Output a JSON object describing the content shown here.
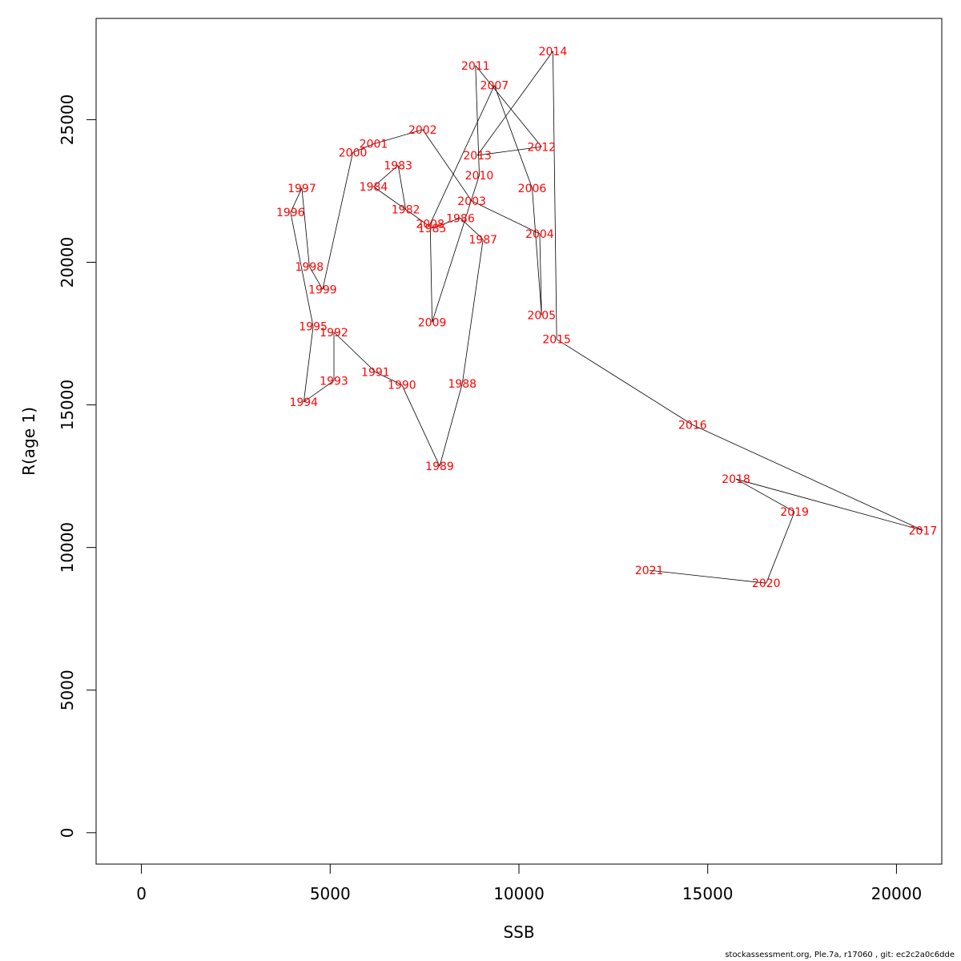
{
  "chart_data": {
    "type": "line",
    "xlabel": "SSB",
    "ylabel": "R(age 1)",
    "xlim": [
      -1200,
      21200
    ],
    "ylim": [
      -1100,
      28550
    ],
    "xticks": [
      0,
      5000,
      10000,
      15000,
      20000
    ],
    "yticks": [
      0,
      5000,
      10000,
      15000,
      20000,
      25000
    ],
    "line_color": "#000000",
    "label_color": "#ff0000",
    "points": [
      {
        "year": "1982",
        "x": 7000,
        "y": 21850
      },
      {
        "year": "1983",
        "x": 6800,
        "y": 23400
      },
      {
        "year": "1984",
        "x": 6150,
        "y": 22650
      },
      {
        "year": "1985",
        "x": 7700,
        "y": 21200
      },
      {
        "year": "1986",
        "x": 8450,
        "y": 21550
      },
      {
        "year": "1987",
        "x": 9050,
        "y": 20800
      },
      {
        "year": "1988",
        "x": 8500,
        "y": 15750
      },
      {
        "year": "1989",
        "x": 7900,
        "y": 12850
      },
      {
        "year": "1990",
        "x": 6900,
        "y": 15700
      },
      {
        "year": "1991",
        "x": 6200,
        "y": 16150
      },
      {
        "year": "1992",
        "x": 5100,
        "y": 17550
      },
      {
        "year": "1993",
        "x": 5100,
        "y": 15850
      },
      {
        "year": "1994",
        "x": 4300,
        "y": 15100
      },
      {
        "year": "1995",
        "x": 4550,
        "y": 17750
      },
      {
        "year": "1996",
        "x": 3950,
        "y": 21750
      },
      {
        "year": "1997",
        "x": 4250,
        "y": 22600
      },
      {
        "year": "1998",
        "x": 4450,
        "y": 19850
      },
      {
        "year": "1999",
        "x": 4800,
        "y": 19050
      },
      {
        "year": "2000",
        "x": 5600,
        "y": 23850
      },
      {
        "year": "2001",
        "x": 6150,
        "y": 24150
      },
      {
        "year": "2002",
        "x": 7450,
        "y": 24650
      },
      {
        "year": "2003",
        "x": 8750,
        "y": 22150
      },
      {
        "year": "2004",
        "x": 10550,
        "y": 21000
      },
      {
        "year": "2005",
        "x": 10600,
        "y": 18150
      },
      {
        "year": "2006",
        "x": 10350,
        "y": 22600
      },
      {
        "year": "2007",
        "x": 9350,
        "y": 26200
      },
      {
        "year": "2008",
        "x": 7650,
        "y": 21350
      },
      {
        "year": "2009",
        "x": 7700,
        "y": 17900
      },
      {
        "year": "2010",
        "x": 8950,
        "y": 23050
      },
      {
        "year": "2011",
        "x": 8850,
        "y": 26900
      },
      {
        "year": "2012",
        "x": 10600,
        "y": 24050
      },
      {
        "year": "2013",
        "x": 8900,
        "y": 23750
      },
      {
        "year": "2014",
        "x": 10900,
        "y": 27400
      },
      {
        "year": "2015",
        "x": 11000,
        "y": 17300
      },
      {
        "year": "2016",
        "x": 14600,
        "y": 14300
      },
      {
        "year": "2017",
        "x": 20700,
        "y": 10600
      },
      {
        "year": "2018",
        "x": 15750,
        "y": 12400
      },
      {
        "year": "2019",
        "x": 17300,
        "y": 11250
      },
      {
        "year": "2020",
        "x": 16550,
        "y": 8750
      },
      {
        "year": "2021",
        "x": 13450,
        "y": 9200
      }
    ]
  },
  "footer": {
    "text": "stockassessment.org, Ple.7a, r17060 , git: ec2c2a0c6dde"
  }
}
